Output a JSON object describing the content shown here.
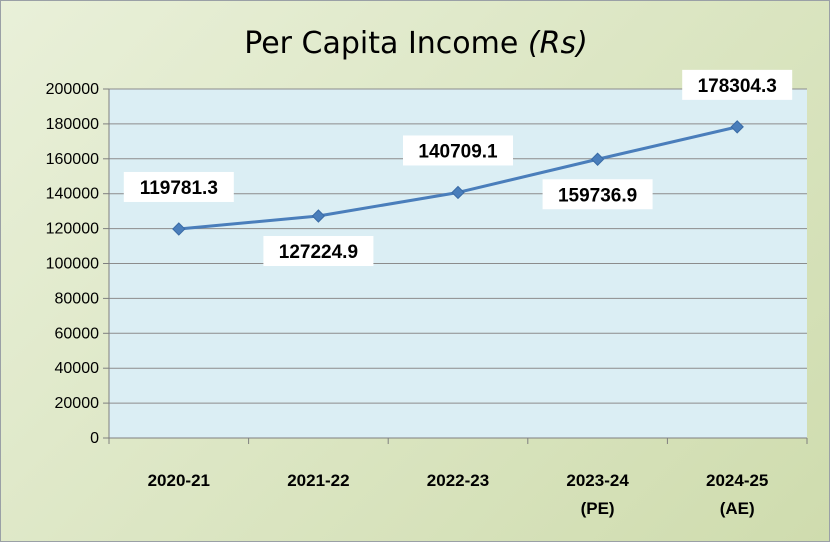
{
  "chart_data": {
    "type": "line",
    "title": "Per Capita Income",
    "title_unit": "(Rs)",
    "categories": [
      [
        "2020-21"
      ],
      [
        "2021-22"
      ],
      [
        "2022-23"
      ],
      [
        "2023-24",
        "(PE)"
      ],
      [
        "2024-25",
        "(AE)"
      ]
    ],
    "series": [
      {
        "values": [
          119781.3,
          127224.9,
          140709.1,
          159736.9,
          178304.3
        ],
        "color": "#4a7ebb",
        "marker": "diamond"
      }
    ],
    "data_labels": [
      "119781.3",
      "127224.9",
      "140709.1",
      "159736.9",
      "178304.3"
    ],
    "data_label_positions": [
      "above",
      "below",
      "above",
      "below",
      "above"
    ],
    "ylim": [
      0,
      200000
    ],
    "yticks": [
      0,
      20000,
      40000,
      60000,
      80000,
      100000,
      120000,
      140000,
      160000,
      180000,
      200000
    ],
    "grid": true,
    "legend": "none",
    "plot_background": "#dbeef4",
    "chart_background": "#d7e4bd",
    "xlabel": "",
    "ylabel": ""
  }
}
